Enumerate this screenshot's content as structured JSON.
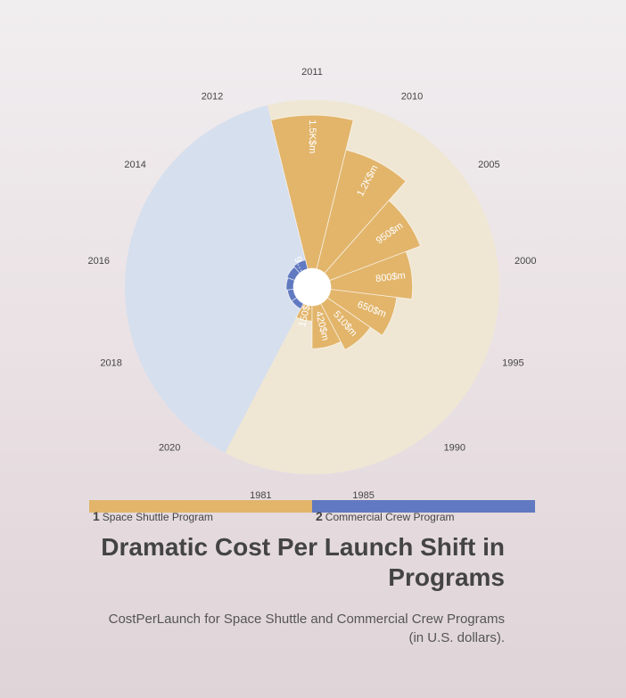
{
  "chart_data": {
    "type": "polar-bar",
    "title": "Dramatic Cost Per Launch Shift in Programs",
    "subtitle": "CostPerLaunch for Space Shuttle and Commercial Crew Programs (in U.S. dollars).",
    "categories": [
      "1981",
      "1985",
      "1990",
      "1995",
      "2000",
      "2005",
      "2010",
      "2011",
      "2012",
      "2014",
      "2016",
      "2018",
      "2020"
    ],
    "series": [
      {
        "name": "Space Shuttle Program",
        "color": "#e2b56b",
        "band_color": "#efe7d4",
        "values": [
          150,
          420,
          510,
          650,
          800,
          950,
          1200,
          1500,
          null,
          null,
          null,
          null,
          null
        ],
        "labels": [
          "150$m",
          "420$m",
          "510$m",
          "650$m",
          "800$m",
          "950$m",
          "1.2K$m",
          "1.5K$m",
          "",
          "",
          "",
          "",
          ""
        ]
      },
      {
        "name": "Commercial Crew Program",
        "color": "#6079c0",
        "band_color": "#d6dfee",
        "values": [
          null,
          null,
          null,
          null,
          null,
          null,
          null,
          null,
          90,
          80,
          70,
          60,
          58
        ],
        "labels": [
          "",
          "",
          "",
          "",
          "",
          "",
          "",
          "",
          "9…",
          "",
          "",
          "",
          ""
        ]
      }
    ],
    "rmax": 1650
  },
  "legend": [
    {
      "num": "1",
      "label": "Space Shuttle Program",
      "color": "#e2b56b"
    },
    {
      "num": "2",
      "label": "Commercial Crew Program",
      "color": "#6079c0"
    }
  ]
}
